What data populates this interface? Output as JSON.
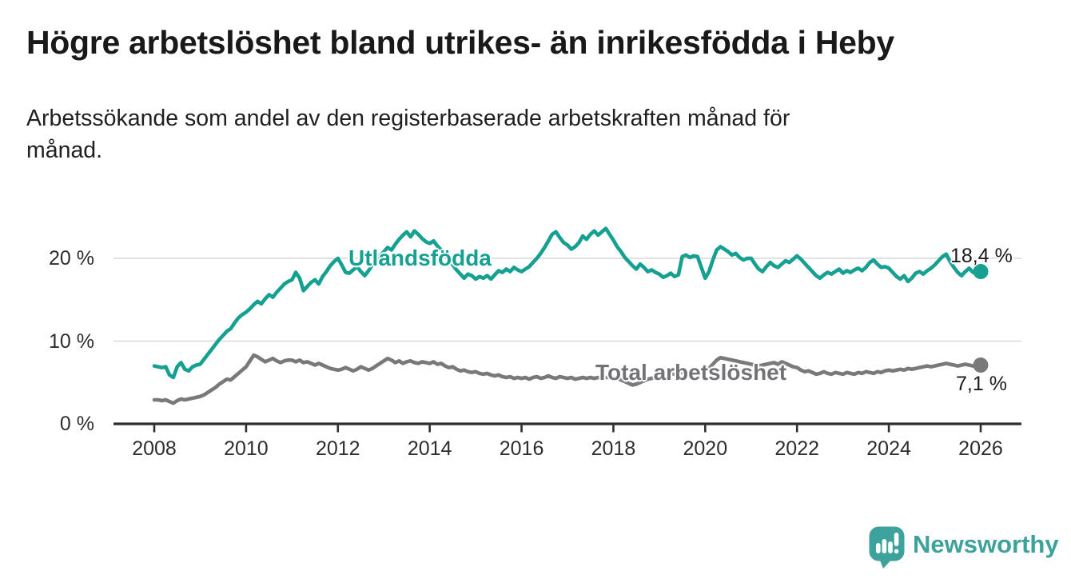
{
  "header": {
    "title": "Högre arbetslöshet bland utrikes- än inrikesfödda i Heby",
    "subtitle_line1": "Arbetssökande som andel av den registerbaserade arbetskraften månad för",
    "subtitle_line2": "månad."
  },
  "footer": {
    "brand": "Newsworthy",
    "brand_color": "#3ea29c",
    "logo_icon": "newsworthy-speech-bubble-bar-chart-icon"
  },
  "chart_data": {
    "type": "line",
    "title": "Högre arbetslöshet bland utrikes- än inrikesfödda i Heby",
    "subtitle": "Arbetssökande som andel av den registerbaserade arbetskraften månad för månad.",
    "x_unit": "monthly, January 2008 – January 2026",
    "x_start": 2008.0,
    "x_step": 0.0833333,
    "xlim": [
      2007.1,
      2026.9
    ],
    "ylim": [
      0,
      24.5
    ],
    "grid": "horizontal",
    "x_ticks": [
      2008,
      2010,
      2012,
      2014,
      2016,
      2018,
      2020,
      2022,
      2024,
      2026
    ],
    "y_ticks": [
      0,
      10,
      20
    ],
    "y_tick_labels": [
      "0 %",
      "10 %",
      "20 %"
    ],
    "y_gridlines": [
      10,
      20
    ],
    "axis_color": "#2e2e2e",
    "gridline_color": "#d9d9d9",
    "series": [
      {
        "name": "Utlandsfödda",
        "color": "#16a091",
        "end_label": "18,4 %",
        "end_value": 18.4,
        "values": [
          7.0,
          6.9,
          6.8,
          6.9,
          5.9,
          5.6,
          6.9,
          7.4,
          6.6,
          6.4,
          6.9,
          7.1,
          7.2,
          7.8,
          8.4,
          9.0,
          9.6,
          10.2,
          10.7,
          11.2,
          11.5,
          12.2,
          12.8,
          13.2,
          13.5,
          13.9,
          14.4,
          14.8,
          14.5,
          15.1,
          15.6,
          15.3,
          15.9,
          16.4,
          16.9,
          17.2,
          17.4,
          18.3,
          17.6,
          16.1,
          16.6,
          17.1,
          17.4,
          16.9,
          17.8,
          18.4,
          19.1,
          19.6,
          20.0,
          19.2,
          18.3,
          18.2,
          18.6,
          19.0,
          18.4,
          17.9,
          18.5,
          19.2,
          19.8,
          20.3,
          20.8,
          21.3,
          21.0,
          21.7,
          22.3,
          22.8,
          23.2,
          22.6,
          23.3,
          22.9,
          22.4,
          22.0,
          21.8,
          22.1,
          21.5,
          21.0,
          20.4,
          19.8,
          19.2,
          18.6,
          18.1,
          17.6,
          18.1,
          17.9,
          17.5,
          17.8,
          17.6,
          17.9,
          17.5,
          18.0,
          18.5,
          18.3,
          18.7,
          18.4,
          18.9,
          18.6,
          18.4,
          18.7,
          19.0,
          19.5,
          20.0,
          20.6,
          21.3,
          22.1,
          22.9,
          23.2,
          22.5,
          21.9,
          21.6,
          21.1,
          21.4,
          21.9,
          22.7,
          22.3,
          22.9,
          23.3,
          22.8,
          23.2,
          23.6,
          22.9,
          22.2,
          21.4,
          20.8,
          20.1,
          19.6,
          19.1,
          18.7,
          19.3,
          18.9,
          18.4,
          18.6,
          18.3,
          18.1,
          17.7,
          17.9,
          18.2,
          17.8,
          18.0,
          20.2,
          20.4,
          20.1,
          20.3,
          20.2,
          18.9,
          17.6,
          18.4,
          19.8,
          21.0,
          21.4,
          21.1,
          20.8,
          20.4,
          20.6,
          20.1,
          19.8,
          20.0,
          20.0,
          19.3,
          18.7,
          18.4,
          19.0,
          19.5,
          19.1,
          18.9,
          19.3,
          19.7,
          19.5,
          19.9,
          20.3,
          19.9,
          19.4,
          18.9,
          18.4,
          17.9,
          17.6,
          18.0,
          18.3,
          18.1,
          18.4,
          18.7,
          18.2,
          18.5,
          18.3,
          18.6,
          18.8,
          18.5,
          18.9,
          19.5,
          19.8,
          19.3,
          18.9,
          19.0,
          18.8,
          18.3,
          17.8,
          17.5,
          17.9,
          17.2,
          17.6,
          18.2,
          18.4,
          18.1,
          18.5,
          18.8,
          19.2,
          19.7,
          20.2,
          20.5,
          19.6,
          18.9,
          18.3,
          17.9,
          18.4,
          18.8,
          18.3,
          18.2,
          18.4
        ]
      },
      {
        "name": "Total arbetslöshet",
        "color": "#7a787b",
        "end_label": "7,1 %",
        "end_value": 7.1,
        "values": [
          2.9,
          2.9,
          2.8,
          2.9,
          2.7,
          2.5,
          2.8,
          3.0,
          2.9,
          3.0,
          3.1,
          3.2,
          3.3,
          3.5,
          3.8,
          4.1,
          4.4,
          4.8,
          5.1,
          5.4,
          5.3,
          5.7,
          6.1,
          6.5,
          6.9,
          7.6,
          8.3,
          8.1,
          7.8,
          7.5,
          7.7,
          7.9,
          7.6,
          7.4,
          7.6,
          7.7,
          7.7,
          7.5,
          7.7,
          7.4,
          7.5,
          7.3,
          7.1,
          7.3,
          7.1,
          6.9,
          6.7,
          6.6,
          6.5,
          6.6,
          6.8,
          6.6,
          6.4,
          6.6,
          6.9,
          6.7,
          6.5,
          6.7,
          7.0,
          7.3,
          7.6,
          7.9,
          7.7,
          7.4,
          7.6,
          7.3,
          7.5,
          7.6,
          7.4,
          7.3,
          7.5,
          7.4,
          7.3,
          7.5,
          7.2,
          7.3,
          7.0,
          6.8,
          6.9,
          6.6,
          6.4,
          6.5,
          6.3,
          6.2,
          6.3,
          6.1,
          6.0,
          6.1,
          5.9,
          5.8,
          5.9,
          5.7,
          5.6,
          5.7,
          5.5,
          5.6,
          5.5,
          5.6,
          5.4,
          5.6,
          5.7,
          5.5,
          5.6,
          5.8,
          5.6,
          5.5,
          5.7,
          5.6,
          5.5,
          5.6,
          5.4,
          5.5,
          5.6,
          5.5,
          5.6,
          5.5,
          5.6,
          5.5,
          5.6,
          5.6,
          5.6,
          5.5,
          5.3,
          5.1,
          4.9,
          4.7,
          4.8,
          5.0,
          5.2,
          5.4,
          5.5,
          5.7,
          5.8,
          5.9,
          6.0,
          6.1,
          6.0,
          6.1,
          6.2,
          6.1,
          6.2,
          6.3,
          6.4,
          6.4,
          6.5,
          6.7,
          7.2,
          7.7,
          8.0,
          7.9,
          7.8,
          7.7,
          7.6,
          7.5,
          7.4,
          7.3,
          7.2,
          7.1,
          7.0,
          7.1,
          7.2,
          7.3,
          7.4,
          7.2,
          7.5,
          7.3,
          7.1,
          6.9,
          6.8,
          6.5,
          6.3,
          6.4,
          6.2,
          6.0,
          6.1,
          6.3,
          6.1,
          6.0,
          6.2,
          6.1,
          6.0,
          6.2,
          6.1,
          6.0,
          6.2,
          6.1,
          6.3,
          6.2,
          6.1,
          6.3,
          6.2,
          6.4,
          6.5,
          6.4,
          6.5,
          6.6,
          6.5,
          6.7,
          6.6,
          6.7,
          6.8,
          6.9,
          7.0,
          6.9,
          7.0,
          7.1,
          7.2,
          7.3,
          7.2,
          7.1,
          7.0,
          7.1,
          7.2,
          7.1,
          7.0,
          7.1,
          7.1
        ]
      }
    ]
  }
}
